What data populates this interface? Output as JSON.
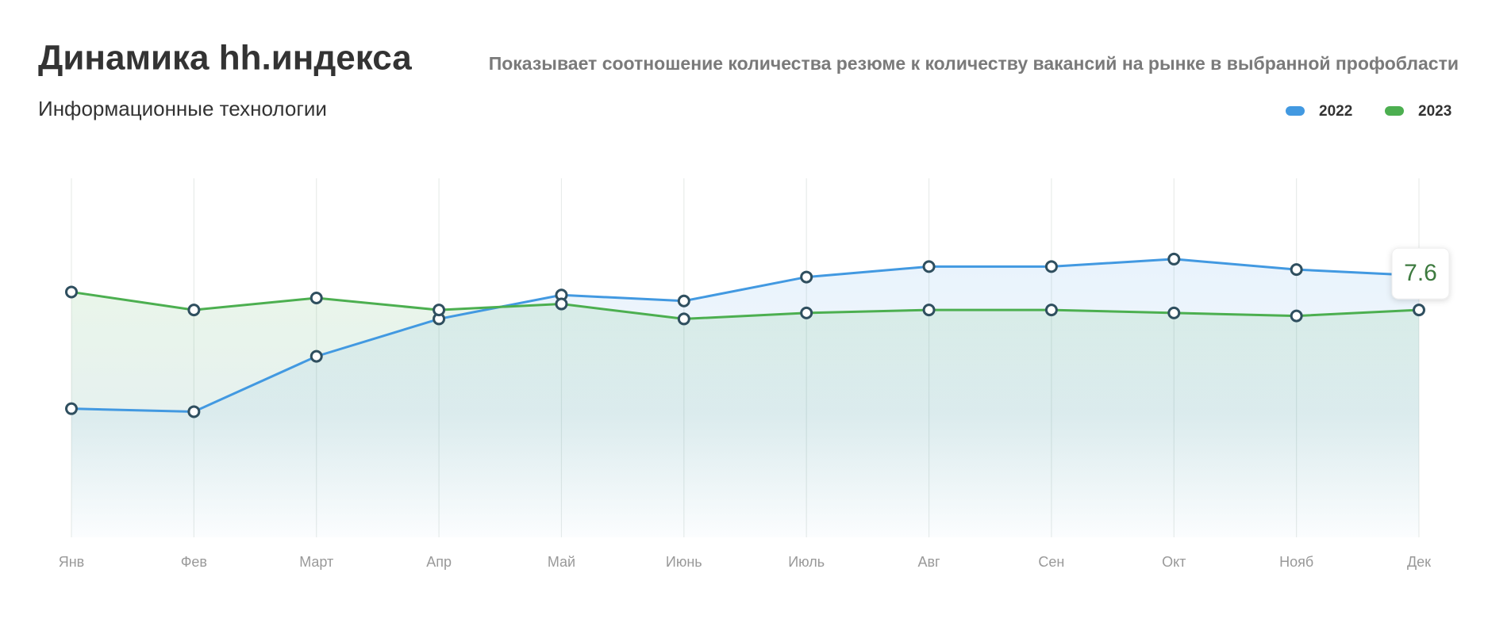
{
  "chart_data": {
    "type": "line",
    "title": "Динамика hh.индекса",
    "subtitle": "Информационные технологии",
    "description": "Показывает соотношение количества резюме к количеству вакансий на рынке в выбранной профобласти",
    "categories": [
      "Янв",
      "Фев",
      "Март",
      "Апр",
      "Май",
      "Июнь",
      "Июль",
      "Авг",
      "Сен",
      "Окт",
      "Нояб",
      "Дек"
    ],
    "series": [
      {
        "name": "2022",
        "color": "#4299e1",
        "values": [
          4.3,
          4.2,
          6.05,
          7.3,
          8.1,
          7.9,
          8.7,
          9.05,
          9.05,
          9.3,
          8.95,
          8.75
        ]
      },
      {
        "name": "2023",
        "color": "#4caf50",
        "values": [
          8.2,
          7.6,
          8.0,
          7.6,
          7.8,
          7.3,
          7.5,
          7.6,
          7.6,
          7.5,
          7.4,
          7.6
        ]
      }
    ],
    "ylim": [
      0,
      12
    ],
    "legend": "top-right"
  }
}
